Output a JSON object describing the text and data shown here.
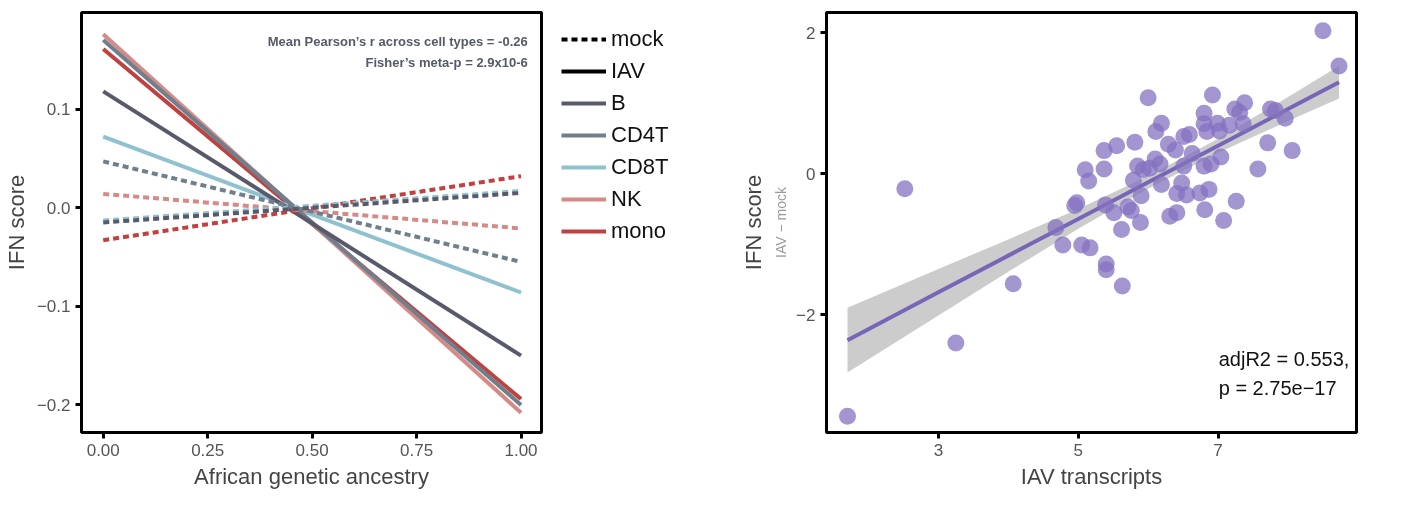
{
  "chart_data": [
    {
      "type": "line",
      "xlabel": "African genetic ancestry",
      "ylabel": "IFN score",
      "x": [
        0,
        1
      ],
      "xlim": [
        -0.052,
        1.049
      ],
      "ylim": [
        -0.228,
        0.198
      ],
      "xticks": [
        {
          "value": 0,
          "label": "0.00"
        },
        {
          "value": 0.25,
          "label": "0.25"
        },
        {
          "value": 0.5,
          "label": "0.50"
        },
        {
          "value": 0.75,
          "label": "0.75"
        },
        {
          "value": 1,
          "label": "1.00"
        }
      ],
      "yticks": [
        {
          "value": 0.1,
          "label": "0.1"
        },
        {
          "value": 0,
          "label": "0.0"
        },
        {
          "value": -0.1,
          "label": "−0.1"
        },
        {
          "value": -0.2,
          "label": "−0.2"
        }
      ],
      "grid": false,
      "legend": "right",
      "annotations": [
        "Mean Pearson’s r across cell types = -0.26",
        "Fisher’s meta-p = 2.9x10-6"
      ],
      "series": [
        {
          "name": "mock",
          "color": "#000000",
          "line_style": "dashed",
          "values": [
            null,
            null
          ]
        },
        {
          "name": "IAV",
          "color": "#000000",
          "line_style": "solid",
          "values": [
            null,
            null
          ]
        },
        {
          "color": "#585a6b",
          "line_style": "dashed",
          "values": [
            -0.015,
            0.015
          ]
        },
        {
          "color": "#6f7f8c",
          "line_style": "dashed",
          "values": [
            0.047,
            -0.055
          ]
        },
        {
          "color": "#8fc1cf",
          "line_style": "dashed",
          "values": [
            -0.013,
            0.017
          ]
        },
        {
          "color": "#d58a87",
          "line_style": "dashed",
          "values": [
            0.014,
            -0.021
          ]
        },
        {
          "color": "#c0413f",
          "line_style": "dashed",
          "values": [
            -0.033,
            0.032
          ]
        },
        {
          "name": "B",
          "color": "#585a6b",
          "line_style": "solid",
          "values": [
            0.118,
            -0.15
          ]
        },
        {
          "name": "CD4T",
          "color": "#6f7f8c",
          "line_style": "solid",
          "values": [
            0.17,
            -0.2
          ]
        },
        {
          "name": "CD8T",
          "color": "#8fc1cf",
          "line_style": "solid",
          "values": [
            0.072,
            -0.086
          ]
        },
        {
          "name": "NK",
          "color": "#d58a87",
          "line_style": "solid",
          "values": [
            0.176,
            -0.208
          ]
        },
        {
          "name": "mono",
          "color": "#c0413f",
          "line_style": "solid",
          "values": [
            0.161,
            -0.194
          ]
        }
      ]
    },
    {
      "type": "scatter",
      "xlabel": "IAV transcripts",
      "ylabel": "IFN score",
      "subtitle": "IAV − mock",
      "xlim": [
        1.4,
        8.98
      ],
      "ylim": [
        -3.67,
        2.29
      ],
      "xticks": [
        3,
        5,
        7
      ],
      "yticks": [
        {
          "value": 2,
          "label": "2"
        },
        {
          "value": 0,
          "label": "0"
        },
        {
          "value": -2,
          "label": "−2"
        }
      ],
      "grid": false,
      "legend": false,
      "annotations": [
        "adjR2 = 0.553,",
        "p = 2.75e−17"
      ],
      "series": [
        {
          "type": "scatter",
          "color": "#8471c0",
          "marker": "circle",
          "x": [
            1.7,
            2.52,
            3.25,
            4.07,
            4.68,
            4.78,
            4.98,
            4.95,
            5.05,
            5.17,
            5.1,
            5.15,
            5.37,
            5.37,
            5.39,
            5.4,
            5.4,
            5.51,
            5.55,
            5.62,
            5.63,
            5.71,
            5.76,
            5.79,
            5.81,
            5.85,
            5.89,
            5.9,
            5.93,
            6.0,
            6.02,
            6.1,
            6.11,
            6.17,
            6.19,
            6.19,
            6.29,
            6.31,
            6.39,
            6.41,
            6.41,
            6.48,
            6.51,
            6.51,
            6.55,
            6.59,
            6.63,
            6.74,
            6.8,
            6.8,
            6.8,
            6.81,
            6.87,
            6.9,
            6.92,
            6.99,
            7.02,
            7.04,
            7.08,
            7.16,
            7.24,
            7.26,
            7.31,
            7.36,
            7.38,
            7.57,
            7.71,
            7.75,
            7.82,
            7.96,
            8.06,
            8.5,
            8.73,
            6.84
          ],
          "values": [
            -3.44,
            -0.21,
            -2.4,
            -1.56,
            -0.76,
            -1.01,
            -0.41,
            -0.45,
            -1.01,
            -1.05,
            0.06,
            -0.1,
            0.33,
            0.07,
            -0.44,
            -1.28,
            -1.36,
            -0.55,
            0.4,
            -0.79,
            -1.59,
            -0.47,
            -0.52,
            -0.09,
            0.45,
            0.11,
            -0.69,
            -0.31,
            0.06,
            1.08,
            0.08,
            0.21,
            0.6,
            0.14,
            0.72,
            -0.15,
            0.42,
            -0.6,
            0.34,
            -0.55,
            -0.28,
            -0.13,
            0.53,
            0.11,
            -0.3,
            0.56,
            0.29,
            -0.27,
            0.86,
            0.71,
            0.11,
            -0.51,
            -0.22,
            0.14,
            1.12,
            0.72,
            0.61,
            0.24,
            -0.66,
            0.69,
            0.92,
            -0.39,
            0.87,
            0.71,
            1.01,
            0.07,
            0.44,
            0.92,
            0.9,
            0.79,
            0.33,
            2.03,
            1.53,
            0.6
          ]
        },
        {
          "type": "line",
          "color": "#7766b8",
          "x": [
            1.7,
            3,
            4,
            5,
            6,
            7,
            8,
            8.73
          ],
          "values": [
            -2.36,
            -1.68,
            -1.16,
            -0.64,
            -0.12,
            0.4,
            0.92,
            1.3
          ],
          "lower": [
            -2.82,
            -2.01,
            -1.39,
            -0.78,
            -0.21,
            0.3,
            0.75,
            1.07
          ],
          "upper": [
            -1.9,
            -1.35,
            -0.93,
            -0.5,
            -0.03,
            0.5,
            1.09,
            1.53
          ]
        }
      ]
    }
  ]
}
